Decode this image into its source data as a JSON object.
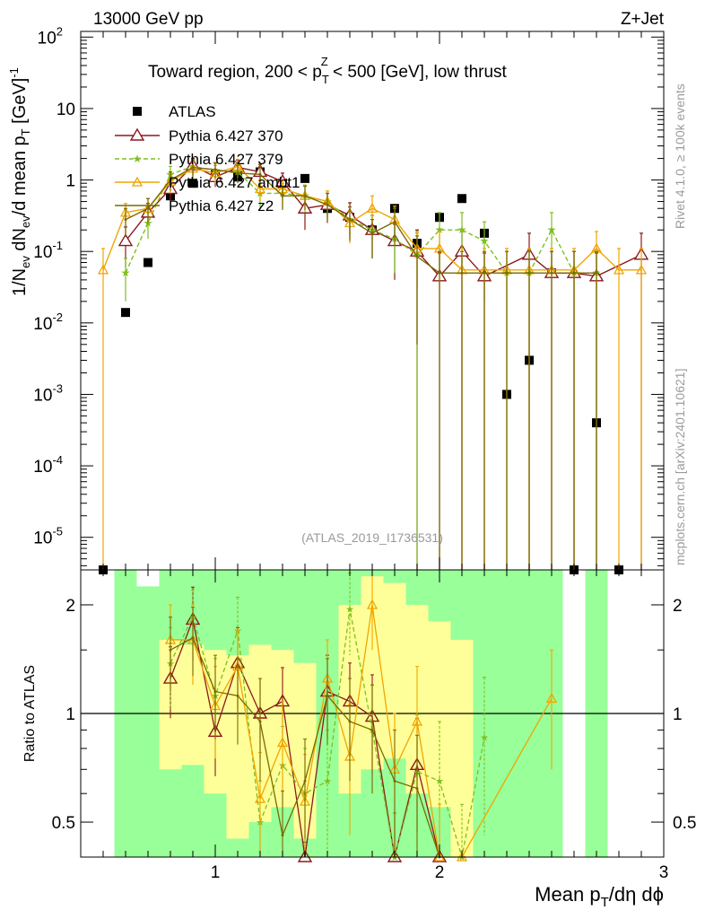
{
  "header": {
    "left_title": "13000 GeV pp",
    "right_title": "Z+Jet"
  },
  "plot_title": "Toward region, 200 < p_T^Z < 500 [GeV], low thrust",
  "watermark": "(ATLAS_2019_I1736531)",
  "side_labels": {
    "rivet": "Rivet 4.1.0, ≥ 100k events",
    "mcplots": "mcplots.cern.ch [arXiv:2401.10621]"
  },
  "colors": {
    "atlas": "#000000",
    "py370": "#8b1a1a",
    "py379": "#7fbf1f",
    "ambt1": "#f0a500",
    "z2": "#7a6a00",
    "band_green": "#99ff99",
    "band_yellow": "#ffff99"
  },
  "chart_data": [
    {
      "type": "scatter",
      "panel": "main",
      "ylabel": "1/N_ev dN_ev/d mean p_T [GeV]^-1",
      "yscale": "log",
      "ylim": [
        3.5e-06,
        120
      ],
      "xlim": [
        0.4,
        3.0
      ],
      "ytick_labels": [
        "10^-5",
        "10^-4",
        "10^-3",
        "10^-2",
        "10^-1",
        "1",
        "10",
        "10^2"
      ],
      "legend": {
        "placement": "top-left",
        "entries": [
          "ATLAS",
          "Pythia 6.427 370",
          "Pythia 6.427 379",
          "Pythia 6.427 ambt1",
          "Pythia 6.427 z2"
        ]
      },
      "series": [
        {
          "name": "ATLAS",
          "marker": "square",
          "x": [
            0.5,
            0.6,
            0.7,
            0.8,
            0.9,
            1.0,
            1.1,
            1.2,
            1.3,
            1.4,
            1.5,
            1.6,
            1.7,
            1.8,
            1.9,
            2.0,
            2.1,
            2.2,
            2.3,
            2.4,
            2.5,
            2.6,
            2.7,
            2.8
          ],
          "values": [
            3e-06,
            0.014,
            0.07,
            0.6,
            0.9,
            1.2,
            1.1,
            1.3,
            0.9,
            1.05,
            0.4,
            0.3,
            0.2,
            0.4,
            0.13,
            0.3,
            0.55,
            0.18,
            0.001,
            0.003,
            0.05,
            3e-06,
            0.0004,
            3e-06
          ]
        },
        {
          "name": "Pythia 6.427 370",
          "marker": "open-triangle",
          "line": "solid",
          "x": [
            0.6,
            0.7,
            0.8,
            0.9,
            1.0,
            1.1,
            1.2,
            1.3,
            1.4,
            1.5,
            1.6,
            1.7,
            1.8,
            1.9,
            2.0,
            2.1,
            2.2,
            2.4,
            2.5,
            2.6,
            2.7,
            2.9
          ],
          "values": [
            0.14,
            0.35,
            0.75,
            1.6,
            1.1,
            1.5,
            1.3,
            0.95,
            0.4,
            0.45,
            0.32,
            0.2,
            0.14,
            0.1,
            0.045,
            0.1,
            0.045,
            0.09,
            0.05,
            0.05,
            0.045,
            0.09
          ],
          "errors": [
            0.08,
            0.12,
            0.25,
            0.4,
            0.3,
            0.4,
            0.35,
            0.3,
            0.2,
            0.2,
            0.16,
            0.12,
            0.1,
            0.1,
            0.05,
            0.1,
            0.05,
            0.09,
            0.05,
            0.05,
            0.05,
            0.09
          ]
        },
        {
          "name": "Pythia 6.427 379",
          "marker": "star",
          "line": "dashed",
          "x": [
            0.6,
            0.7,
            0.8,
            0.9,
            1.0,
            1.1,
            1.2,
            1.3,
            1.4,
            1.5,
            1.6,
            1.7,
            1.8,
            1.9,
            2.0,
            2.1,
            2.2,
            2.3,
            2.4,
            2.5,
            2.6,
            2.7
          ],
          "values": [
            0.05,
            0.25,
            1.2,
            1.55,
            1.35,
            1.3,
            0.65,
            0.65,
            0.6,
            0.5,
            0.28,
            0.2,
            0.15,
            0.09,
            0.2,
            0.2,
            0.14,
            0.05,
            0.05,
            0.2,
            0.05,
            0.05
          ],
          "errors": [
            0.03,
            0.1,
            0.35,
            0.4,
            0.35,
            0.35,
            0.25,
            0.25,
            0.25,
            0.2,
            0.14,
            0.12,
            0.1,
            0.09,
            0.15,
            0.15,
            0.12,
            0.05,
            0.05,
            0.15,
            0.05,
            0.05
          ]
        },
        {
          "name": "Pythia 6.427 ambt1",
          "marker": "open-triangle-small",
          "line": "solid",
          "x": [
            0.5,
            0.6,
            0.7,
            0.8,
            0.9,
            1.0,
            1.1,
            1.2,
            1.3,
            1.4,
            1.5,
            1.6,
            1.7,
            1.8,
            1.9,
            2.0,
            2.1,
            2.2,
            2.3,
            2.4,
            2.5,
            2.6,
            2.7,
            2.8,
            2.9
          ],
          "values": [
            0.055,
            0.35,
            0.4,
            0.95,
            1.45,
            1.25,
            1.55,
            0.75,
            0.75,
            0.6,
            0.5,
            0.25,
            0.4,
            0.28,
            0.11,
            0.11,
            0.055,
            0.055,
            0.055,
            0.055,
            0.055,
            0.055,
            0.11,
            0.055,
            0.055
          ],
          "errors": [
            0.055,
            0.12,
            0.15,
            0.3,
            0.4,
            0.35,
            0.4,
            0.25,
            0.25,
            0.22,
            0.2,
            0.12,
            0.2,
            0.15,
            0.08,
            0.08,
            0.055,
            0.055,
            0.055,
            0.055,
            0.055,
            0.055,
            0.08,
            0.055,
            0.055
          ]
        },
        {
          "name": "Pythia 6.427 z2",
          "marker": "none",
          "line": "solid",
          "x": [
            0.6,
            0.7,
            0.8,
            0.9,
            1.0,
            1.1,
            1.2,
            1.3,
            1.4,
            1.5,
            1.6,
            1.7,
            1.8,
            1.9,
            2.0,
            2.1,
            2.2,
            2.3,
            2.4,
            2.5,
            2.6,
            2.7
          ],
          "values": [
            0.28,
            0.4,
            1.0,
            1.5,
            1.4,
            1.25,
            1.2,
            0.6,
            0.6,
            0.45,
            0.28,
            0.18,
            0.26,
            0.085,
            0.05,
            0.05,
            0.05,
            0.05,
            0.05,
            0.05,
            0.05,
            0.05
          ],
          "errors": [
            0.12,
            0.15,
            0.3,
            0.4,
            0.35,
            0.35,
            0.35,
            0.22,
            0.22,
            0.2,
            0.14,
            0.1,
            0.14,
            0.08,
            0.05,
            0.05,
            0.05,
            0.05,
            0.05,
            0.05,
            0.05,
            0.05
          ]
        }
      ]
    },
    {
      "type": "line",
      "panel": "ratio",
      "ylabel": "Ratio to ATLAS",
      "xlabel": "Mean p_T/dη dϕ",
      "yscale": "log",
      "ylim": [
        0.4,
        2.5
      ],
      "xlim": [
        0.4,
        3.0
      ],
      "xtick_labels": [
        "1",
        "2",
        "3"
      ],
      "ytick_labels": [
        "0.5",
        "1",
        "2"
      ],
      "reference_line": 1,
      "bands": {
        "x_edges": [
          0.55,
          0.65,
          0.75,
          0.85,
          0.95,
          1.05,
          1.15,
          1.25,
          1.35,
          1.45,
          1.55,
          1.65,
          1.75,
          1.85,
          1.95,
          2.05,
          2.15,
          2.25,
          2.35,
          2.45,
          2.55,
          2.65,
          2.75
        ],
        "green_low": [
          0.3,
          0.3,
          0.3,
          0.3,
          0.3,
          0.3,
          0.3,
          0.3,
          0.3,
          0.3,
          0.3,
          0.3,
          0.3,
          0.3,
          0.3,
          0.3,
          0.3,
          0.3,
          0.3,
          0.3,
          null,
          0.3
        ],
        "green_high": [
          3.0,
          2.25,
          3.0,
          3.0,
          3.0,
          3.0,
          3.0,
          3.0,
          3.0,
          3.0,
          3.0,
          3.0,
          3.0,
          3.0,
          3.0,
          3.0,
          3.0,
          3.0,
          3.0,
          3.0,
          null,
          3.0
        ],
        "yellow_low": [
          null,
          null,
          0.7,
          0.72,
          0.6,
          0.45,
          0.5,
          0.55,
          0.45,
          null,
          0.6,
          0.7,
          0.75,
          0.6,
          0.55,
          0.4,
          null,
          null,
          null,
          null,
          null,
          null
        ],
        "yellow_high": [
          null,
          null,
          1.6,
          1.55,
          1.5,
          1.45,
          1.55,
          1.5,
          1.38,
          null,
          2.0,
          2.4,
          2.3,
          2.0,
          1.8,
          1.6,
          null,
          null,
          null,
          null,
          null,
          null
        ]
      },
      "series": [
        {
          "name": "Pythia 6.427 370",
          "marker": "open-triangle",
          "x": [
            0.8,
            0.9,
            1.0,
            1.1,
            1.2,
            1.3,
            1.4,
            1.5,
            1.6,
            1.7,
            1.8,
            1.9,
            2.0
          ],
          "values": [
            1.25,
            1.82,
            0.89,
            1.38,
            1.0,
            1.08,
            0.34,
            1.15,
            1.08,
            0.98,
            0.38,
            0.72,
            0.25
          ],
          "errors": [
            0.28,
            0.42,
            0.22,
            0.35,
            0.25,
            0.26,
            0.1,
            0.3,
            0.3,
            0.3,
            0.15,
            0.25,
            0.1
          ]
        },
        {
          "name": "Pythia 6.427 379",
          "marker": "star",
          "x": [
            0.8,
            0.9,
            1.0,
            1.1,
            1.2,
            1.3,
            1.4,
            1.5,
            1.6,
            1.7,
            1.8,
            1.9,
            2.0,
            2.1,
            2.2
          ],
          "values": [
            1.38,
            1.85,
            1.12,
            1.7,
            0.5,
            0.72,
            0.6,
            0.65,
            1.95,
            0.9,
            0.38,
            0.69,
            0.65,
            0.36,
            0.86
          ],
          "errors": [
            0.35,
            0.35,
            0.3,
            0.4,
            0.15,
            0.2,
            0.2,
            0.25,
            0.5,
            0.3,
            0.15,
            0.3,
            0.3,
            0.2,
            0.4
          ]
        },
        {
          "name": "Pythia 6.427 ambt1",
          "marker": "open-triangle-small",
          "x": [
            0.8,
            0.9,
            1.0,
            1.1,
            1.2,
            1.3,
            1.4,
            1.5,
            1.6,
            1.7,
            1.8,
            1.9,
            2.0,
            2.1,
            2.5
          ],
          "values": [
            1.6,
            1.6,
            1.05,
            1.35,
            0.58,
            0.83,
            0.57,
            1.25,
            0.76,
            2.0,
            0.7,
            0.95,
            0.36,
            0.1,
            1.1
          ],
          "errors": [
            0.4,
            0.4,
            0.3,
            0.35,
            0.2,
            0.25,
            0.2,
            0.35,
            0.3,
            0.5,
            0.3,
            0.4,
            0.2,
            0.1,
            0.4
          ]
        },
        {
          "name": "Pythia 6.427 z2",
          "marker": "none",
          "x": [
            0.8,
            0.9,
            1.0,
            1.1,
            1.2,
            1.3,
            1.4,
            1.5,
            1.6,
            1.7,
            1.8,
            1.9,
            2.0
          ],
          "values": [
            1.5,
            1.62,
            1.15,
            1.12,
            0.95,
            0.46,
            0.65,
            1.12,
            0.95,
            0.9,
            0.65,
            0.62,
            0.2
          ],
          "errors": [
            0.35,
            0.35,
            0.3,
            0.3,
            0.3,
            0.15,
            0.2,
            0.3,
            0.3,
            0.3,
            0.25,
            0.25,
            0.1
          ]
        }
      ]
    }
  ]
}
